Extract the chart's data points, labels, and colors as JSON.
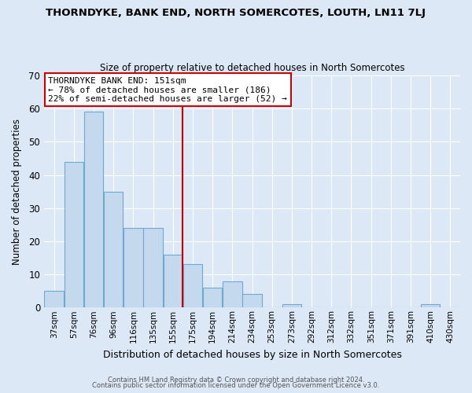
{
  "title": "THORNDYKE, BANK END, NORTH SOMERCOTES, LOUTH, LN11 7LJ",
  "subtitle": "Size of property relative to detached houses in North Somercotes",
  "xlabel": "Distribution of detached houses by size in North Somercotes",
  "ylabel": "Number of detached properties",
  "bar_labels": [
    "37sqm",
    "57sqm",
    "76sqm",
    "96sqm",
    "116sqm",
    "135sqm",
    "155sqm",
    "175sqm",
    "194sqm",
    "214sqm",
    "234sqm",
    "253sqm",
    "273sqm",
    "292sqm",
    "312sqm",
    "332sqm",
    "351sqm",
    "371sqm",
    "391sqm",
    "410sqm",
    "430sqm"
  ],
  "bar_values": [
    5,
    44,
    59,
    35,
    24,
    24,
    16,
    13,
    6,
    8,
    4,
    0,
    1,
    0,
    0,
    0,
    0,
    0,
    0,
    1,
    0
  ],
  "bar_color": "#c5d9ee",
  "bar_edge_color": "#6fa8d0",
  "vline_color": "#cc0000",
  "annotation_title": "THORNDYKE BANK END: 151sqm",
  "annotation_line1": "← 78% of detached houses are smaller (186)",
  "annotation_line2": "22% of semi-detached houses are larger (52) →",
  "annotation_box_color": "#ffffff",
  "annotation_box_edge_color": "#cc0000",
  "ylim": [
    0,
    70
  ],
  "yticks": [
    0,
    10,
    20,
    30,
    40,
    50,
    60,
    70
  ],
  "footer1": "Contains HM Land Registry data © Crown copyright and database right 2024.",
  "footer2": "Contains public sector information licensed under the Open Government Licence v3.0.",
  "fig_background_color": "#dce8f5",
  "plot_background_color": "#dce8f5",
  "grid_color": "#ffffff"
}
